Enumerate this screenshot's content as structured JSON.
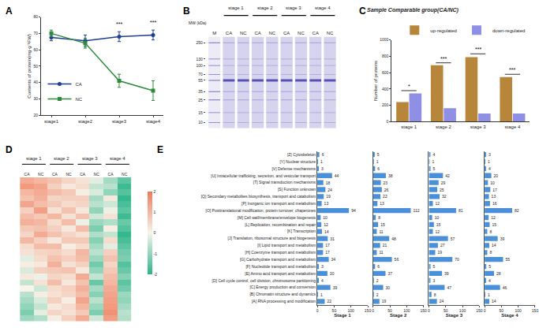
{
  "chart_data": [
    {
      "type": "line",
      "label": "A",
      "categories": [
        "stage1",
        "stage2",
        "stage3",
        "stage4"
      ],
      "series": [
        {
          "name": "CA",
          "color": "#1f3d99",
          "marker": "circle",
          "values": [
            67.5,
            65.5,
            68,
            69
          ],
          "errors": [
            2,
            3.5,
            3,
            3
          ]
        },
        {
          "name": "NC",
          "color": "#2e8b3a",
          "marker": "square",
          "values": [
            70,
            64,
            41,
            35
          ],
          "errors": [
            2,
            3,
            4,
            6
          ]
        }
      ],
      "y_label": "Contents of protein(mg·g⁻¹FW)",
      "ylim": [
        20,
        80
      ],
      "yticks": [
        20,
        30,
        40,
        50,
        60,
        70,
        80
      ],
      "legend": "lower left",
      "annotations": [
        {
          "text": "***",
          "x": "stage3",
          "y": 73
        },
        {
          "text": "***",
          "x": "stage4",
          "y": 74
        }
      ]
    },
    {
      "type": "gel",
      "label": "B",
      "mw_title": "MW (kDa)",
      "markers": [
        250,
        130,
        100,
        70,
        55,
        35,
        25,
        15,
        10
      ],
      "marker_lane": "M",
      "groups": [
        "stage 1",
        "stage 2",
        "stage 3",
        "stage 4"
      ],
      "lanes": [
        "CA",
        "NC",
        "CA",
        "NC",
        "CA",
        "NC",
        "CA",
        "NC"
      ],
      "major_band": 55,
      "ylim": [
        8,
        320
      ],
      "log": "y",
      "color": "#4b45b0"
    },
    {
      "type": "bar",
      "label": "C",
      "title": "Sample Comparable group(CA/NC)",
      "categories": [
        "stage 1",
        "stage 2",
        "stage 3",
        "stage 4"
      ],
      "series": [
        {
          "name": "up-regulated",
          "color": "#b8863b",
          "values": [
            240,
            690,
            790,
            545
          ]
        },
        {
          "name": "down-regulated",
          "color": "#8f8fe6",
          "values": [
            345,
            165,
            100,
            100
          ]
        }
      ],
      "y_label": "Number of proteins",
      "ylim": [
        0,
        1000
      ],
      "yticks": [
        0,
        200,
        400,
        600,
        800,
        1000
      ],
      "legend": "upper right",
      "annotations": [
        {
          "text": "*",
          "x": "stage 1",
          "y": 380
        },
        {
          "text": "***",
          "x": "stage 2",
          "y": 720
        },
        {
          "text": "***",
          "x": "stage 3",
          "y": 830
        },
        {
          "text": "***",
          "x": "stage 4",
          "y": 580
        }
      ]
    },
    {
      "type": "heatmap",
      "label": "D",
      "columns": [
        "CA",
        "NC",
        "CA",
        "NC",
        "CA",
        "NC",
        "CA",
        "NC"
      ],
      "groups": [
        "stage 1",
        "stage 2",
        "stage 3",
        "stage 4"
      ],
      "colors": [
        "#2bb58a",
        "#f7f4ea",
        "#f07a5a"
      ],
      "zlim": [
        -2,
        2
      ],
      "zticks": [
        -2,
        -1,
        0,
        1,
        2
      ],
      "cells": [
        [
          1.2,
          1.0,
          0.8,
          0.5,
          0.3,
          -0.2,
          -0.8,
          -1.5
        ],
        [
          1.5,
          1.3,
          0.6,
          0.2,
          0.4,
          -0.5,
          -0.6,
          -1.8
        ],
        [
          1.0,
          1.2,
          0.9,
          0.7,
          0.1,
          -0.3,
          -1.0,
          -1.6
        ],
        [
          0.8,
          1.1,
          0.5,
          0.6,
          0.6,
          -0.8,
          0.2,
          -1.9
        ],
        [
          1.3,
          0.9,
          0.7,
          0.4,
          0.5,
          -0.6,
          -0.4,
          -1.7
        ],
        [
          0.6,
          1.4,
          0.3,
          0.8,
          0.2,
          -1.0,
          -0.1,
          -1.5
        ],
        [
          0.9,
          0.7,
          1.0,
          0.3,
          0.8,
          -0.4,
          0.3,
          -1.8
        ],
        [
          1.1,
          1.0,
          0.4,
          0.9,
          -0.1,
          -0.9,
          -0.7,
          -1.4
        ],
        [
          0.7,
          0.8,
          0.6,
          0.2,
          0.9,
          -1.2,
          0.1,
          -1.6
        ],
        [
          0.5,
          1.2,
          0.8,
          0.5,
          0.3,
          -0.7,
          -0.5,
          -1.9
        ],
        [
          1.0,
          0.6,
          0.2,
          0.7,
          0.7,
          -1.1,
          0.4,
          -1.7
        ],
        [
          0.4,
          0.9,
          0.9,
          0.1,
          0.4,
          -0.8,
          -0.2,
          -1.5
        ],
        [
          0.3,
          0.5,
          0.6,
          0.4,
          1.0,
          -0.6,
          0.6,
          -1.3
        ],
        [
          -0.2,
          0.4,
          0.8,
          0.6,
          0.9,
          -0.9,
          0.8,
          -1.2
        ],
        [
          0.1,
          0.2,
          1.1,
          0.3,
          0.6,
          -1.3,
          0.5,
          -1.6
        ],
        [
          -0.3,
          0.6,
          0.7,
          0.8,
          0.2,
          -1.0,
          0.7,
          -1.4
        ],
        [
          0.2,
          -0.1,
          0.5,
          0.4,
          1.2,
          -0.5,
          0.9,
          -1.1
        ],
        [
          -0.5,
          0.3,
          0.9,
          0.2,
          0.8,
          -1.4,
          1.0,
          -1.5
        ],
        [
          0.0,
          -0.4,
          0.4,
          0.6,
          1.1,
          -0.8,
          1.2,
          -1.3
        ],
        [
          -0.6,
          0.1,
          0.3,
          0.5,
          0.9,
          -1.1,
          1.3,
          -0.9
        ],
        [
          -0.8,
          -0.3,
          0.6,
          0.1,
          1.3,
          -0.6,
          1.4,
          -1.0
        ],
        [
          -1.0,
          -0.5,
          0.2,
          0.4,
          1.0,
          -0.9,
          1.5,
          -0.8
        ],
        [
          -1.2,
          -0.2,
          0.5,
          0.3,
          0.7,
          -1.2,
          1.6,
          -0.6
        ],
        [
          -0.9,
          -0.7,
          0.1,
          0.6,
          1.2,
          -0.4,
          1.4,
          -0.7
        ]
      ]
    },
    {
      "type": "bar",
      "label": "E",
      "orientation": "horizontal",
      "data_labels": true,
      "color": "#4a90d9",
      "categories": [
        "[Z] Cytoskeleton",
        "[Y] Nuclear structure",
        "[V] Defense mechanisms",
        "[U] Intracellular trafficking, secretion, and vesicular transport",
        "[T] Signal transduction mechanisms",
        "[S] Function unknown",
        "[Q] Secondary metabolites biosynthesis, transport and catabolism",
        "[P] Inorganic ion transport and metabolism",
        "[O] Posttranslational modification, protein turnover, chaperones",
        "[M] Cell wall/membrane/envelope biogenesis",
        "[L] Replication, recombination and repair",
        "[K] Transcription",
        "[J] Translation, ribosomal structure and biogenesis",
        "[I] Lipid transport and metabolism",
        "[H] Coenzyme transport and metabolism",
        "[G] Carbohydrate transport and metabolism",
        "[F] Nucleotide transport and metabolism",
        "[E] Amino acid transport and metabolism",
        "[D] Cell cycle control, cell division, chromosome partitioning",
        "[C] Energy production and conversion",
        "[B] Chromatin structure and dynamics",
        "[A] RNA processing and modification"
      ],
      "panels": [
        {
          "title": "Stage 1",
          "values": [
            6,
            1,
            3,
            44,
            18,
            24,
            19,
            13,
            94,
            10,
            12,
            14,
            31,
            17,
            17,
            34,
            3,
            30,
            4,
            39,
            1,
            22
          ]
        },
        {
          "title": "Stage 2",
          "values": [
            5,
            1,
            6,
            38,
            23,
            26,
            22,
            13,
            112,
            8,
            15,
            11,
            48,
            21,
            11,
            56,
            6,
            37,
            2,
            30,
            2,
            19
          ]
        },
        {
          "title": "Stage 3",
          "values": [
            4,
            1,
            5,
            42,
            29,
            25,
            32,
            12,
            81,
            10,
            15,
            12,
            57,
            27,
            19,
            70,
            5,
            39,
            3,
            47,
            8,
            24
          ]
        },
        {
          "title": "Stage 4",
          "values": [
            3,
            1,
            4,
            20,
            10,
            17,
            13,
            16,
            82,
            12,
            15,
            8,
            39,
            14,
            8,
            55,
            5,
            28,
            4,
            46,
            1,
            14
          ]
        }
      ],
      "xlim": [
        0,
        150
      ],
      "xticks": [
        0,
        50,
        100,
        150
      ]
    }
  ]
}
